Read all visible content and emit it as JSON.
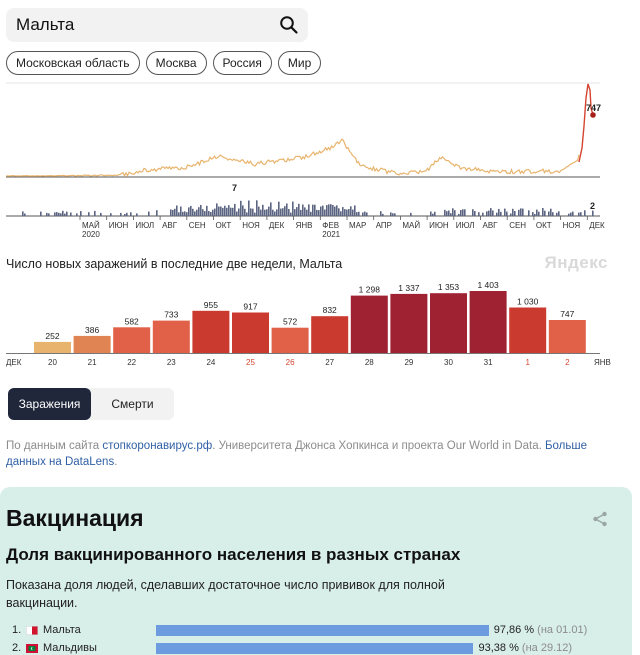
{
  "search": {
    "query": "Мальта"
  },
  "regions": [
    "Московская область",
    "Москва",
    "Россия",
    "Мир"
  ],
  "trend": {
    "peak_label": "747",
    "deaths_peak_label": "7",
    "deaths_last_label": "2",
    "months": [
      {
        "m": "МАЙ",
        "y": "2020"
      },
      {
        "m": "ИЮН"
      },
      {
        "m": "ИЮЛ"
      },
      {
        "m": "АВГ"
      },
      {
        "m": "СЕН"
      },
      {
        "m": "ОКТ"
      },
      {
        "m": "НОЯ"
      },
      {
        "m": "ДЕК"
      },
      {
        "m": "ЯНВ"
      },
      {
        "m": "ФЕВ",
        "y": "2021"
      },
      {
        "m": "МАР"
      },
      {
        "m": "АПР"
      },
      {
        "m": "МАЙ"
      },
      {
        "m": "ИЮН"
      },
      {
        "m": "ИЮЛ"
      },
      {
        "m": "АВГ"
      },
      {
        "m": "СЕН"
      },
      {
        "m": "ОКТ"
      },
      {
        "m": "НОЯ"
      },
      {
        "m": "ДЕК"
      }
    ]
  },
  "bar_chart": {
    "subtitle": "Число новых заражений в последние две недели, Мальта",
    "brand": "Яндекс",
    "start_label": "ДЕК",
    "end_label": "ЯНВ",
    "highlight_color": "#d64431"
  },
  "chart_data": {
    "type": "bar",
    "title": "Число новых заражений в последние две недели, Мальта",
    "categories": [
      "20",
      "21",
      "22",
      "23",
      "24",
      "25",
      "26",
      "27",
      "28",
      "29",
      "30",
      "31",
      "1",
      "2"
    ],
    "values": [
      252,
      386,
      582,
      733,
      955,
      917,
      572,
      832,
      1298,
      1337,
      1353,
      1403,
      1030,
      747
    ],
    "value_labels": [
      "252",
      "386",
      "582",
      "733",
      "955",
      "917",
      "572",
      "832",
      "1 298",
      "1 337",
      "1 353",
      "1 403",
      "1 030",
      "747"
    ],
    "highlighted_categories": [
      "25",
      "26",
      "1",
      "2"
    ]
  },
  "toggle": {
    "cases": "Заражения",
    "deaths": "Смерти"
  },
  "source": {
    "prefix": "По данным сайта ",
    "site_link": "стопкоронавирус.рф",
    "middle": ". Университета Джонса Хопкинса и проекта Our World in Data. ",
    "more_link": "Больше данных на DataLens",
    "suffix": "."
  },
  "vaccination": {
    "title": "Вакцинация",
    "subtitle": "Доля вакцинированного населения в разных странах",
    "description": "Показана доля людей, сделавших достаточное число прививок для полной вакцинации.",
    "countries": [
      {
        "rank": "1.",
        "name": "Мальта",
        "value": 97.86,
        "pct": "97,86 %",
        "date": "(на 01.01)"
      },
      {
        "rank": "2.",
        "name": "Мальдивы",
        "value": 93.38,
        "pct": "93,38 %",
        "date": "(на 29.12)"
      }
    ]
  }
}
